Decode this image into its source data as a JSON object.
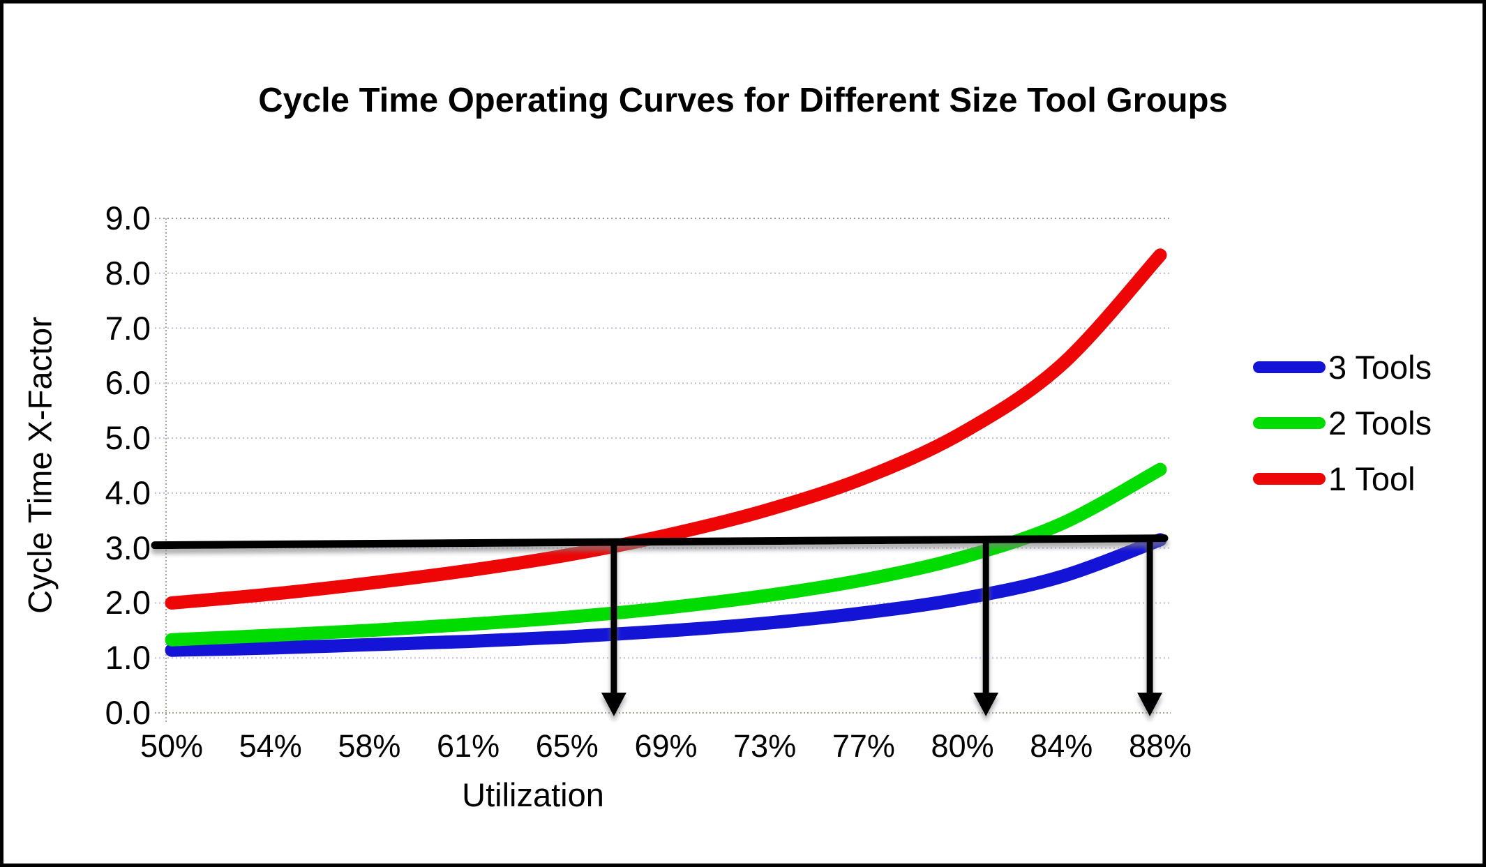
{
  "chart_data": {
    "type": "line",
    "title": "Cycle Time Operating Curves for Different Size Tool Groups",
    "xlabel": "Utilization",
    "ylabel": "Cycle Time X-Factor",
    "x_tick_labels": [
      "50%",
      "54%",
      "58%",
      "61%",
      "65%",
      "69%",
      "73%",
      "77%",
      "80%",
      "84%",
      "88%"
    ],
    "y_tick_labels": [
      "9.0",
      "8.0",
      "7.0",
      "6.0",
      "5.0",
      "4.0",
      "3.0",
      "2.0",
      "1.0",
      "0.0"
    ],
    "ylim": [
      0,
      9
    ],
    "xlim_percent": [
      50,
      88
    ],
    "grid": "horizontal",
    "legend_position": "right",
    "series": [
      {
        "name": "3 Tools",
        "color": "#1414d6",
        "values": [
          1.14,
          1.18,
          1.24,
          1.3,
          1.38,
          1.49,
          1.63,
          1.82,
          2.08,
          2.48,
          3.15
        ]
      },
      {
        "name": "2 Tools",
        "color": "#00db00",
        "values": [
          1.33,
          1.41,
          1.5,
          1.61,
          1.74,
          1.91,
          2.13,
          2.42,
          2.83,
          3.44,
          4.43
        ]
      },
      {
        "name": "1 Tool",
        "color": "#ee0606",
        "values": [
          2.0,
          2.16,
          2.36,
          2.59,
          2.87,
          3.23,
          3.68,
          4.27,
          5.1,
          6.33,
          8.33
        ]
      }
    ],
    "annotations": {
      "reference_line": {
        "y": 3.0,
        "color": "#000000"
      },
      "drop_arrows_x_percent": [
        67,
        81.3,
        87.6
      ],
      "arrow_color": "#000000"
    }
  }
}
